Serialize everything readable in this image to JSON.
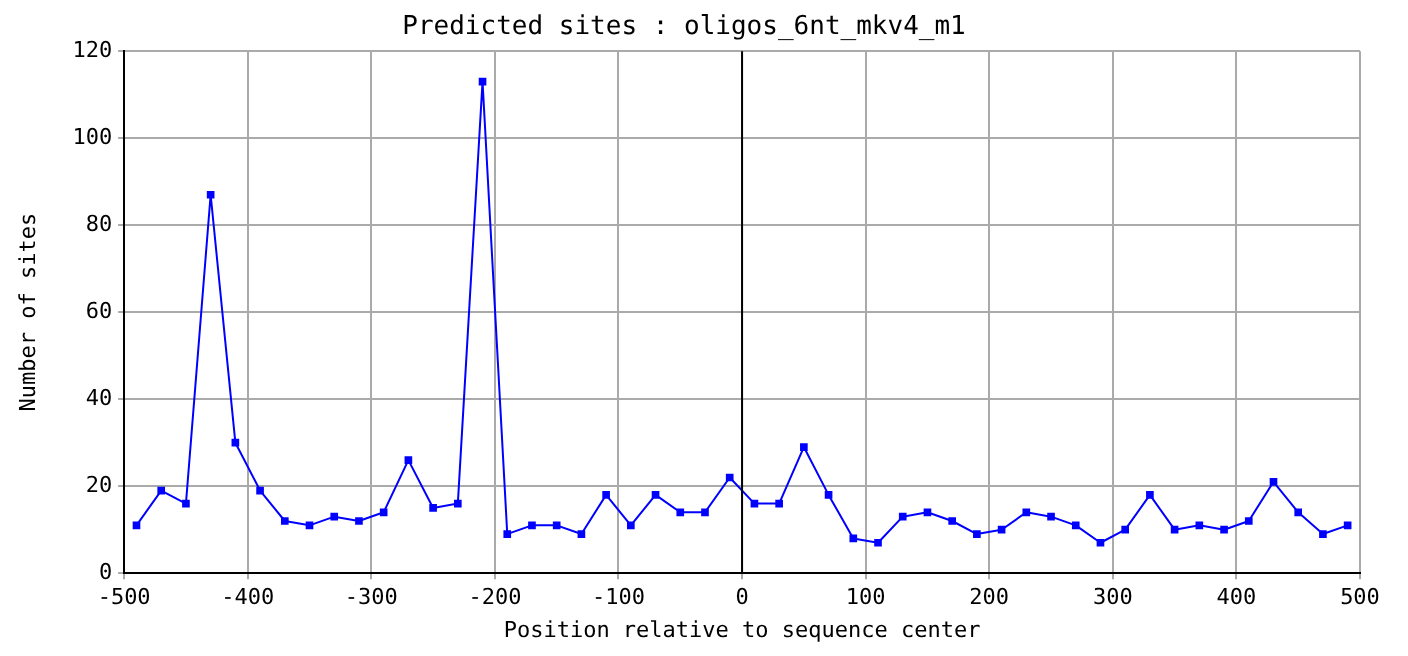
{
  "chart_data": {
    "type": "line",
    "title": "Predicted sites : oligos_6nt_mkv4_m1",
    "xlabel": "Position relative to sequence center",
    "ylabel": "Number of sites",
    "x": [
      -490,
      -470,
      -450,
      -430,
      -410,
      -390,
      -370,
      -350,
      -330,
      -310,
      -290,
      -270,
      -250,
      -230,
      -210,
      -190,
      -170,
      -150,
      -130,
      -110,
      -90,
      -70,
      -50,
      -30,
      -10,
      10,
      30,
      50,
      70,
      90,
      110,
      130,
      150,
      170,
      190,
      210,
      230,
      250,
      270,
      290,
      310,
      330,
      350,
      370,
      390,
      410,
      430,
      450,
      470,
      490
    ],
    "series": [
      {
        "color": "#0000ff",
        "values": [
          11,
          19,
          16,
          87,
          30,
          19,
          12,
          11,
          13,
          12,
          14,
          26,
          15,
          16,
          113,
          9,
          11,
          11,
          9,
          18,
          11,
          18,
          14,
          14,
          22,
          16,
          16,
          29,
          18,
          8,
          7,
          13,
          14,
          12,
          9,
          10,
          14,
          13,
          11,
          7,
          10,
          18,
          10,
          11,
          10,
          12,
          21,
          14,
          9,
          11
        ]
      }
    ],
    "xlim": [
      -500,
      500
    ],
    "xticks": [
      -500,
      -400,
      -300,
      -200,
      -100,
      0,
      100,
      200,
      300,
      400,
      500
    ],
    "ylim": [
      0,
      120
    ],
    "yticks": [
      0,
      20,
      40,
      60,
      80,
      100,
      120
    ],
    "ref_lines": [
      {
        "axis": "x",
        "value": 0,
        "color": "#000000"
      }
    ],
    "grid": true,
    "legend": false,
    "marker": "square",
    "line_style": "solid"
  }
}
